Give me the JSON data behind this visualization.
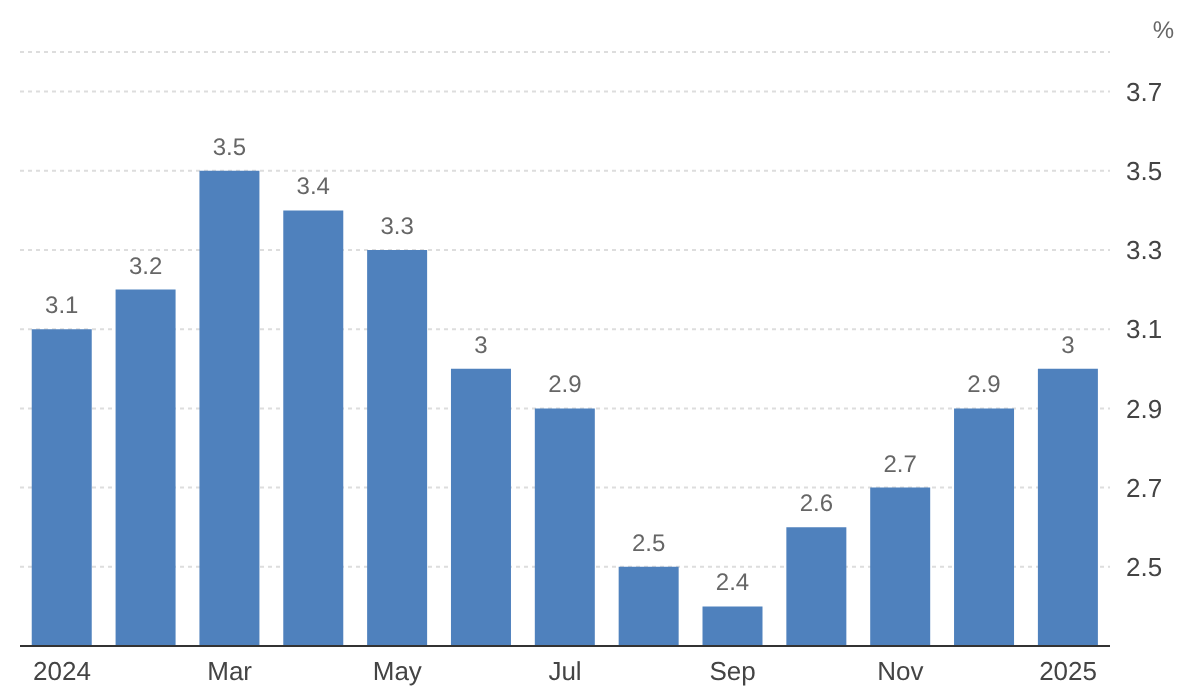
{
  "chart_data": {
    "type": "bar",
    "ylabel": "%",
    "categories": [
      "2024",
      null,
      "Mar",
      null,
      "May",
      null,
      "Jul",
      null,
      "Sep",
      null,
      "Nov",
      null,
      "2025"
    ],
    "values": [
      3.1,
      3.2,
      3.5,
      3.4,
      3.3,
      3,
      2.9,
      2.5,
      2.4,
      2.6,
      2.7,
      2.9,
      3
    ],
    "color": "#4f81bd",
    "ylim": [
      2.3,
      3.8
    ],
    "yticks": [
      2.5,
      2.7,
      2.9,
      3.1,
      3.3,
      3.5,
      3.7
    ],
    "grid": "y",
    "data_labels": true
  }
}
